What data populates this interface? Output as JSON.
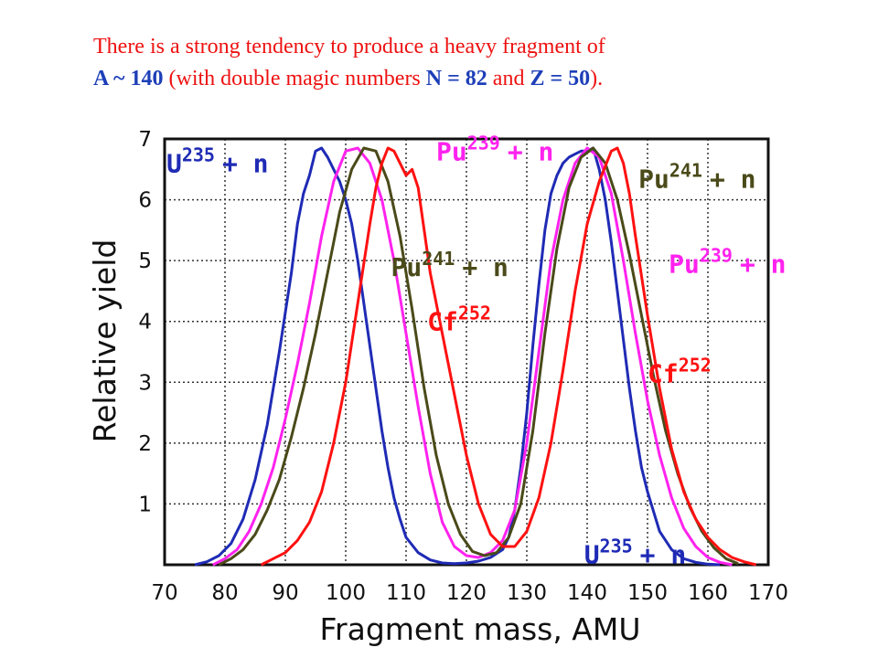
{
  "caption": {
    "line1": "There is a strong tendency to produce a heavy fragment of",
    "a_expr": "A ~ 140",
    "mid": " (with double magic numbers ",
    "n_expr": "N = 82",
    "and": " and ",
    "z_expr": "Z = 50",
    "end": ")."
  },
  "chart_data": {
    "type": "line",
    "xlabel": "Fragment mass, AMU",
    "ylabel": "Relative yield",
    "xlim": [
      70,
      170
    ],
    "ylim": [
      0,
      7
    ],
    "xticks": [
      70,
      80,
      90,
      100,
      110,
      120,
      130,
      140,
      150,
      160,
      170
    ],
    "yticks": [
      1,
      2,
      3,
      4,
      5,
      6,
      7
    ],
    "grid": true,
    "series": [
      {
        "name": "U235 + n",
        "color": "#1f2bb5",
        "x": [
          75,
          77,
          79,
          81,
          83,
          85,
          87,
          89,
          91,
          92,
          93,
          94,
          95,
          96,
          97,
          98,
          99,
          100,
          101,
          102,
          103,
          104,
          105,
          106,
          107,
          108,
          109,
          110,
          112,
          114,
          116,
          118,
          120,
          122,
          124,
          126,
          127,
          128,
          129,
          130,
          131,
          132,
          133,
          134,
          135,
          136,
          137,
          138,
          139,
          140,
          141,
          142,
          143,
          144,
          145,
          146,
          147,
          148,
          149,
          150,
          152,
          154,
          156,
          158,
          160,
          162
        ],
        "y": [
          0.0,
          0.05,
          0.15,
          0.35,
          0.75,
          1.4,
          2.3,
          3.5,
          4.8,
          5.6,
          6.1,
          6.4,
          6.8,
          6.85,
          6.7,
          6.5,
          6.3,
          6.0,
          5.6,
          5.0,
          4.3,
          3.6,
          2.9,
          2.2,
          1.6,
          1.1,
          0.75,
          0.45,
          0.2,
          0.08,
          0.03,
          0.02,
          0.03,
          0.06,
          0.12,
          0.25,
          0.45,
          0.9,
          1.6,
          2.5,
          3.6,
          4.6,
          5.5,
          6.1,
          6.4,
          6.6,
          6.7,
          6.75,
          6.8,
          6.8,
          6.85,
          6.5,
          6.0,
          5.3,
          4.5,
          3.7,
          2.9,
          2.2,
          1.6,
          1.2,
          0.55,
          0.25,
          0.1,
          0.04,
          0.01,
          0.0
        ]
      },
      {
        "name": "Pu239 + n",
        "color": "#ff22ee",
        "x": [
          78,
          80,
          82,
          84,
          86,
          88,
          90,
          92,
          94,
          96,
          98,
          100,
          102,
          104,
          106,
          108,
          110,
          112,
          114,
          116,
          118,
          120,
          122,
          124,
          126,
          128,
          130,
          132,
          134,
          136,
          138,
          140,
          142,
          144,
          146,
          148,
          150,
          152,
          154,
          156,
          158,
          160,
          162,
          164
        ],
        "y": [
          0.0,
          0.1,
          0.25,
          0.55,
          1.0,
          1.6,
          2.4,
          3.3,
          4.3,
          5.4,
          6.3,
          6.8,
          6.85,
          6.6,
          6.0,
          5.0,
          3.8,
          2.6,
          1.5,
          0.7,
          0.3,
          0.15,
          0.12,
          0.2,
          0.4,
          0.9,
          2.0,
          3.5,
          5.0,
          6.0,
          6.6,
          6.85,
          6.7,
          6.1,
          5.0,
          3.8,
          2.7,
          1.8,
          1.1,
          0.6,
          0.3,
          0.12,
          0.04,
          0.0
        ]
      },
      {
        "name": "Pu241 + n",
        "color": "#4a4a1a",
        "x": [
          79,
          81,
          83,
          85,
          87,
          89,
          91,
          93,
          95,
          97,
          99,
          101,
          103,
          105,
          107,
          109,
          111,
          113,
          115,
          117,
          119,
          121,
          123,
          125,
          127,
          129,
          131,
          133,
          135,
          137,
          139,
          141,
          143,
          145,
          147,
          149,
          151,
          153,
          155,
          157,
          159,
          161,
          163,
          165
        ],
        "y": [
          0.0,
          0.1,
          0.25,
          0.5,
          0.9,
          1.4,
          2.1,
          2.9,
          3.8,
          4.8,
          5.8,
          6.5,
          6.85,
          6.8,
          6.3,
          5.4,
          4.2,
          2.9,
          1.8,
          1.0,
          0.5,
          0.22,
          0.15,
          0.2,
          0.45,
          1.0,
          2.2,
          3.8,
          5.2,
          6.2,
          6.7,
          6.85,
          6.6,
          6.0,
          5.1,
          4.1,
          3.1,
          2.2,
          1.5,
          0.95,
          0.55,
          0.28,
          0.1,
          0.02
        ]
      },
      {
        "name": "Cf252",
        "color": "#ff1111",
        "x": [
          86,
          88,
          90,
          92,
          94,
          96,
          98,
          100,
          102,
          104,
          105,
          106,
          107,
          108,
          109,
          110,
          111,
          112,
          113,
          114,
          116,
          118,
          120,
          122,
          124,
          126,
          128,
          130,
          132,
          134,
          136,
          138,
          140,
          142,
          144,
          145,
          146,
          147,
          148,
          150,
          152,
          154,
          156,
          158,
          160,
          162,
          164,
          166,
          168
        ],
        "y": [
          0.0,
          0.1,
          0.2,
          0.4,
          0.7,
          1.2,
          2.0,
          3.0,
          4.3,
          5.6,
          6.2,
          6.6,
          6.85,
          6.8,
          6.6,
          6.4,
          6.5,
          6.2,
          5.5,
          4.8,
          3.8,
          2.8,
          1.8,
          1.0,
          0.5,
          0.3,
          0.3,
          0.55,
          1.1,
          2.0,
          3.2,
          4.5,
          5.6,
          6.3,
          6.8,
          6.85,
          6.6,
          6.1,
          5.4,
          4.1,
          2.9,
          1.9,
          1.2,
          0.75,
          0.45,
          0.25,
          0.12,
          0.05,
          0.0
        ]
      }
    ],
    "labels": [
      {
        "series": "U235 + n",
        "base": "U",
        "sup": "235",
        "tail": "+ n",
        "at": [
          70.3,
          6.45
        ]
      },
      {
        "series": "U235 + n",
        "base": "U",
        "sup": "235",
        "tail": "+ n",
        "at": [
          139.5,
          0.02
        ]
      },
      {
        "series": "Pu239 + n",
        "base": "Pu",
        "sup": "239",
        "tail": "+ n",
        "at": [
          115.0,
          6.65
        ]
      },
      {
        "series": "Pu239 + n",
        "base": "Pu",
        "sup": "239",
        "tail": "+ n",
        "at": [
          153.5,
          4.8
        ]
      },
      {
        "series": "Pu241 + n",
        "base": "Pu",
        "sup": "241",
        "tail": "+ n",
        "at": [
          107.5,
          4.75
        ]
      },
      {
        "series": "Pu241 + n",
        "base": "Pu",
        "sup": "241",
        "tail": "+ n",
        "at": [
          148.5,
          6.2
        ]
      },
      {
        "series": "Cf252",
        "base": "Cf",
        "sup": "252",
        "tail": "",
        "at": [
          113.5,
          3.85
        ]
      },
      {
        "series": "Cf252",
        "base": "Cf",
        "sup": "252",
        "tail": "",
        "at": [
          150.0,
          3.0
        ]
      }
    ]
  }
}
